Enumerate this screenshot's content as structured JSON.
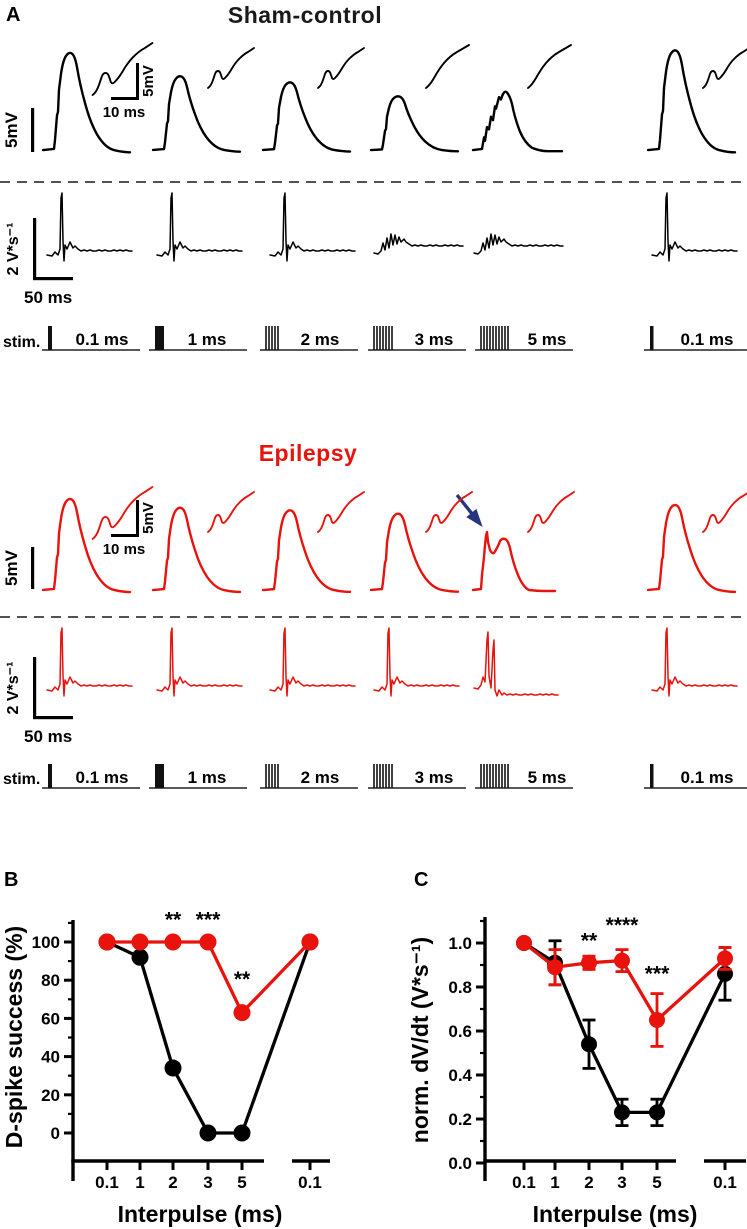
{
  "figure": {
    "panel_a_label": "A",
    "panel_b_label": "B",
    "panel_c_label": "C"
  },
  "sham": {
    "title": "Sham-control",
    "title_color": "#1a1a1a",
    "trace_color": "#000000",
    "scalebars": {
      "epsp_voltage": "5mV",
      "inset_time": "10 ms",
      "inset_voltage": "5mV",
      "dvdt": "2 V*s⁻¹",
      "dvdt_time": "50 ms"
    },
    "stim_label": "stim.",
    "stim_durations": [
      "0.1 ms",
      "1 ms",
      "2 ms",
      "3 ms",
      "5 ms",
      "0.1 ms"
    ]
  },
  "epilepsy": {
    "title": "Epilepsy",
    "title_color": "#e8130c",
    "trace_color": "#e8130c",
    "arrow_color": "#26357d",
    "scalebars": {
      "epsp_voltage": "5mV",
      "inset_time": "10 ms",
      "inset_voltage": "5mV",
      "dvdt": "2 V*s⁻¹",
      "dvdt_time": "50 ms"
    },
    "stim_label": "stim.",
    "stim_durations": [
      "0.1 ms",
      "1 ms",
      "2 ms",
      "3 ms",
      "5 ms",
      "0.1 ms"
    ]
  },
  "chart_data": [
    {
      "panel": "B",
      "type": "line",
      "title": "",
      "xlabel": "Interpulse (ms)",
      "ylabel": "D-spike success (%)",
      "categories": [
        "0.1",
        "1",
        "2",
        "3",
        "5",
        "0.1"
      ],
      "axis_break_after_index": 4,
      "ytick_values": [
        0,
        20,
        40,
        60,
        80,
        100
      ],
      "ytick_labels": [
        "0",
        "20",
        "40",
        "60",
        "80",
        "100"
      ],
      "ylim": [
        0,
        115
      ],
      "grid": false,
      "legend": "none",
      "series": [
        {
          "name": "Sham-control",
          "color": "#000000",
          "marker": "circle",
          "values": [
            100,
            92,
            34,
            0,
            0,
            100
          ]
        },
        {
          "name": "Epilepsy",
          "color": "#e8130c",
          "marker": "circle",
          "values": [
            100,
            100,
            100,
            100,
            63,
            100
          ]
        }
      ],
      "annotations": [
        {
          "text": "**",
          "x_index": 2,
          "y": 108
        },
        {
          "text": "***",
          "x_index": 3,
          "y": 108
        },
        {
          "text": "**",
          "x_index": 4,
          "y": 77
        }
      ]
    },
    {
      "panel": "C",
      "type": "line",
      "title": "",
      "xlabel": "Interpulse (ms)",
      "ylabel": "norm. dV/dt (V*s⁻¹)",
      "categories": [
        "0.1",
        "1",
        "2",
        "3",
        "5",
        "0.1"
      ],
      "axis_break_after_index": 4,
      "ytick_values": [
        0,
        0.2,
        0.4,
        0.6,
        0.8,
        1.0
      ],
      "ytick_labels": [
        "0.0",
        "0.2",
        "0.4",
        "0.6",
        "0.8",
        "1.0"
      ],
      "ylim": [
        0,
        1.12
      ],
      "grid": false,
      "legend": "none",
      "series": [
        {
          "name": "Sham-control",
          "color": "#000000",
          "marker": "circle",
          "values": [
            1.0,
            0.91,
            0.54,
            0.23,
            0.23,
            0.86
          ],
          "errors": [
            0,
            0.1,
            0.11,
            0.06,
            0.06,
            0.12
          ]
        },
        {
          "name": "Epilepsy",
          "color": "#e8130c",
          "marker": "circle",
          "values": [
            1.0,
            0.89,
            0.91,
            0.92,
            0.65,
            0.93
          ],
          "errors": [
            0,
            0.08,
            0.03,
            0.05,
            0.12,
            0.05
          ]
        }
      ],
      "annotations": [
        {
          "text": "**",
          "x_index": 2,
          "y": 0.98
        },
        {
          "text": "****",
          "x_index": 3,
          "y": 1.05
        },
        {
          "text": "***",
          "x_index": 4,
          "y": 0.83
        }
      ]
    }
  ]
}
